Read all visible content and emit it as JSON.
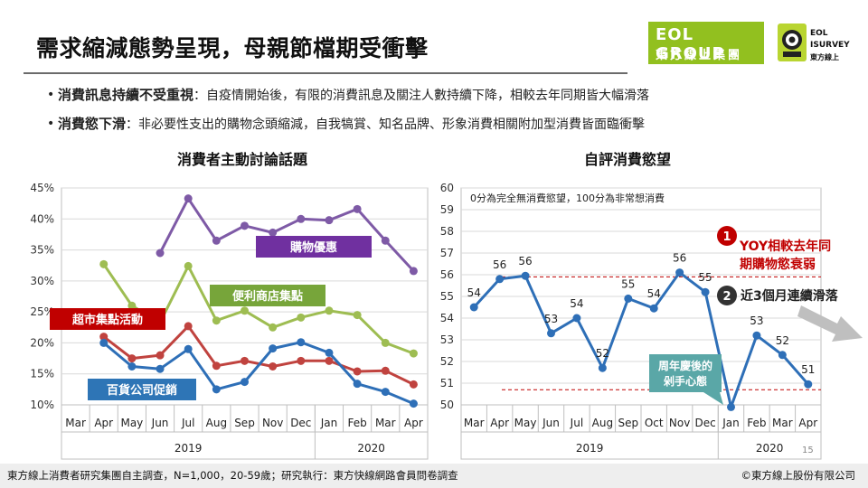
{
  "header": {
    "title": "需求縮減態勢呈現，母親節檔期受衝擊",
    "logo_eol_line1": "EOL GROUP",
    "logo_eol_line2": "東方線上集團",
    "logo_isurvey_line1": "EOL",
    "logo_isurvey_line2": "ISURVEY",
    "logo_isurvey_line3": "東方線上"
  },
  "bullets": [
    {
      "key": "消費訊息持續不受重視",
      "text": "：自疫情開始後，有限的消費訊息及關注人數持續下降，相較去年同期皆大幅滑落"
    },
    {
      "key": "消費慾下滑",
      "text": "：非必要性支出的購物念頭縮減，自我犒賞、知名品牌、形象消費相關附加型消費皆面臨衝擊"
    }
  ],
  "colors": {
    "purple": "#7e5aa6",
    "green": "#9ebd52",
    "red": "#c0433f",
    "blue": "#2e6fb7",
    "label_purple": "#7030a0",
    "label_green": "#77a53a",
    "label_red": "#c00000",
    "label_blue": "#2e75b6",
    "note_teal": "#5aa7a7",
    "alert_red": "#c00000"
  },
  "chart_data": [
    {
      "type": "line",
      "title": "消費者主動討論話題",
      "categories": [
        "Mar",
        "Apr",
        "May",
        "Jun",
        "Jul",
        "Aug",
        "Sep",
        "Nov",
        "Dec",
        "Jan",
        "Feb",
        "Mar",
        "Apr"
      ],
      "year_groups": [
        {
          "label": "2019",
          "span": 9
        },
        {
          "label": "2020",
          "span": 4
        }
      ],
      "yticks": [
        "45%",
        "40%",
        "35%",
        "30%",
        "25%",
        "20%",
        "15%",
        "10%"
      ],
      "ylim": [
        10,
        45
      ],
      "series": [
        {
          "name": "購物優惠",
          "color_key": "purple",
          "values": [
            null,
            null,
            null,
            34.5,
            43.3,
            36.5,
            38.9,
            37.8,
            40.0,
            39.8,
            41.6,
            36.5,
            31.6
          ]
        },
        {
          "name": "便利商店集點",
          "color_key": "green",
          "values": [
            null,
            32.7,
            26.0,
            23.3,
            32.4,
            23.6,
            25.2,
            22.5,
            24.1,
            25.2,
            24.5,
            20.0,
            18.3
          ]
        },
        {
          "name": "超市集點活動",
          "color_key": "red",
          "values": [
            null,
            21.0,
            17.5,
            18.0,
            22.7,
            16.3,
            17.1,
            16.2,
            17.1,
            17.1,
            15.4,
            15.5,
            13.3
          ]
        },
        {
          "name": "百貨公司促銷",
          "color_key": "blue",
          "values": [
            null,
            20.0,
            16.2,
            15.8,
            19.0,
            12.5,
            13.7,
            19.1,
            20.1,
            18.4,
            13.4,
            12.1,
            10.2
          ]
        }
      ]
    },
    {
      "type": "line",
      "title": "自評消費慾望",
      "subtitle": "0分為完全無消費慾望，100分為非常想消費",
      "categories": [
        "Mar",
        "Apr",
        "May",
        "Jun",
        "Jul",
        "Aug",
        "Sep",
        "Oct",
        "Nov",
        "Dec",
        "Jan",
        "Feb",
        "Mar",
        "Apr"
      ],
      "year_groups": [
        {
          "label": "2019",
          "span": 10
        },
        {
          "label": "2020",
          "span": 4
        }
      ],
      "ylim": [
        50,
        60
      ],
      "yticks": [
        60,
        59,
        58,
        57,
        56,
        55,
        54,
        53,
        52,
        51,
        50
      ],
      "series": [
        {
          "name": "",
          "color_key": "blue",
          "values": [
            54.5,
            55.8,
            55.95,
            53.3,
            54.0,
            51.7,
            54.9,
            54.45,
            56.1,
            55.2,
            49.9,
            53.2,
            52.3,
            50.95
          ],
          "labels": [
            "54",
            "56",
            "56",
            "53",
            "54",
            "52",
            "55",
            "54",
            "56",
            "55",
            "",
            "53",
            "52",
            "51"
          ]
        }
      ],
      "reference_lines": [
        55.9,
        50.7
      ],
      "note": "周年慶後的\n剁手心態",
      "annotations": [
        {
          "num": "1",
          "text_line1": "YOY相較去年同",
          "text_line2": "期購物慾衰弱"
        },
        {
          "num": "2",
          "text": "近3個月連續滑落"
        }
      ]
    }
  ],
  "footer": {
    "source": "東方線上消費者研究集團自主調查，N=1,000，20-59歲；研究執行：東方快線網路會員問卷調查",
    "copyright": "©東方線上股份有限公司",
    "page": "15"
  }
}
